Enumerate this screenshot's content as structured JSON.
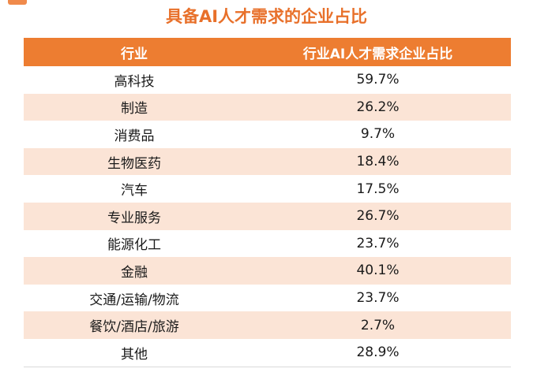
{
  "title": "具备AI人才需求的企业占比",
  "colors": {
    "header_bg": "#ed7d31",
    "title": "#e8702a",
    "alt_row": "#fbe4d6"
  },
  "chart_data": {
    "type": "table",
    "title": "具备AI人才需求的企业占比",
    "columns": [
      "行业",
      "行业AI人才需求企业占比"
    ],
    "rows": [
      {
        "industry": "高科技",
        "share": "59.7%",
        "value": 59.7
      },
      {
        "industry": "制造",
        "share": "26.2%",
        "value": 26.2
      },
      {
        "industry": "消费品",
        "share": "9.7%",
        "value": 9.7
      },
      {
        "industry": "生物医药",
        "share": "18.4%",
        "value": 18.4
      },
      {
        "industry": "汽车",
        "share": "17.5%",
        "value": 17.5
      },
      {
        "industry": "专业服务",
        "share": "26.7%",
        "value": 26.7
      },
      {
        "industry": "能源化工",
        "share": "23.7%",
        "value": 23.7
      },
      {
        "industry": "金融",
        "share": "40.1%",
        "value": 40.1
      },
      {
        "industry": "交通/运输/物流",
        "share": "23.7%",
        "value": 23.7
      },
      {
        "industry": "餐饮/酒店/旅游",
        "share": "2.7%",
        "value": 2.7
      },
      {
        "industry": "其他",
        "share": "28.9%",
        "value": 28.9
      }
    ]
  }
}
